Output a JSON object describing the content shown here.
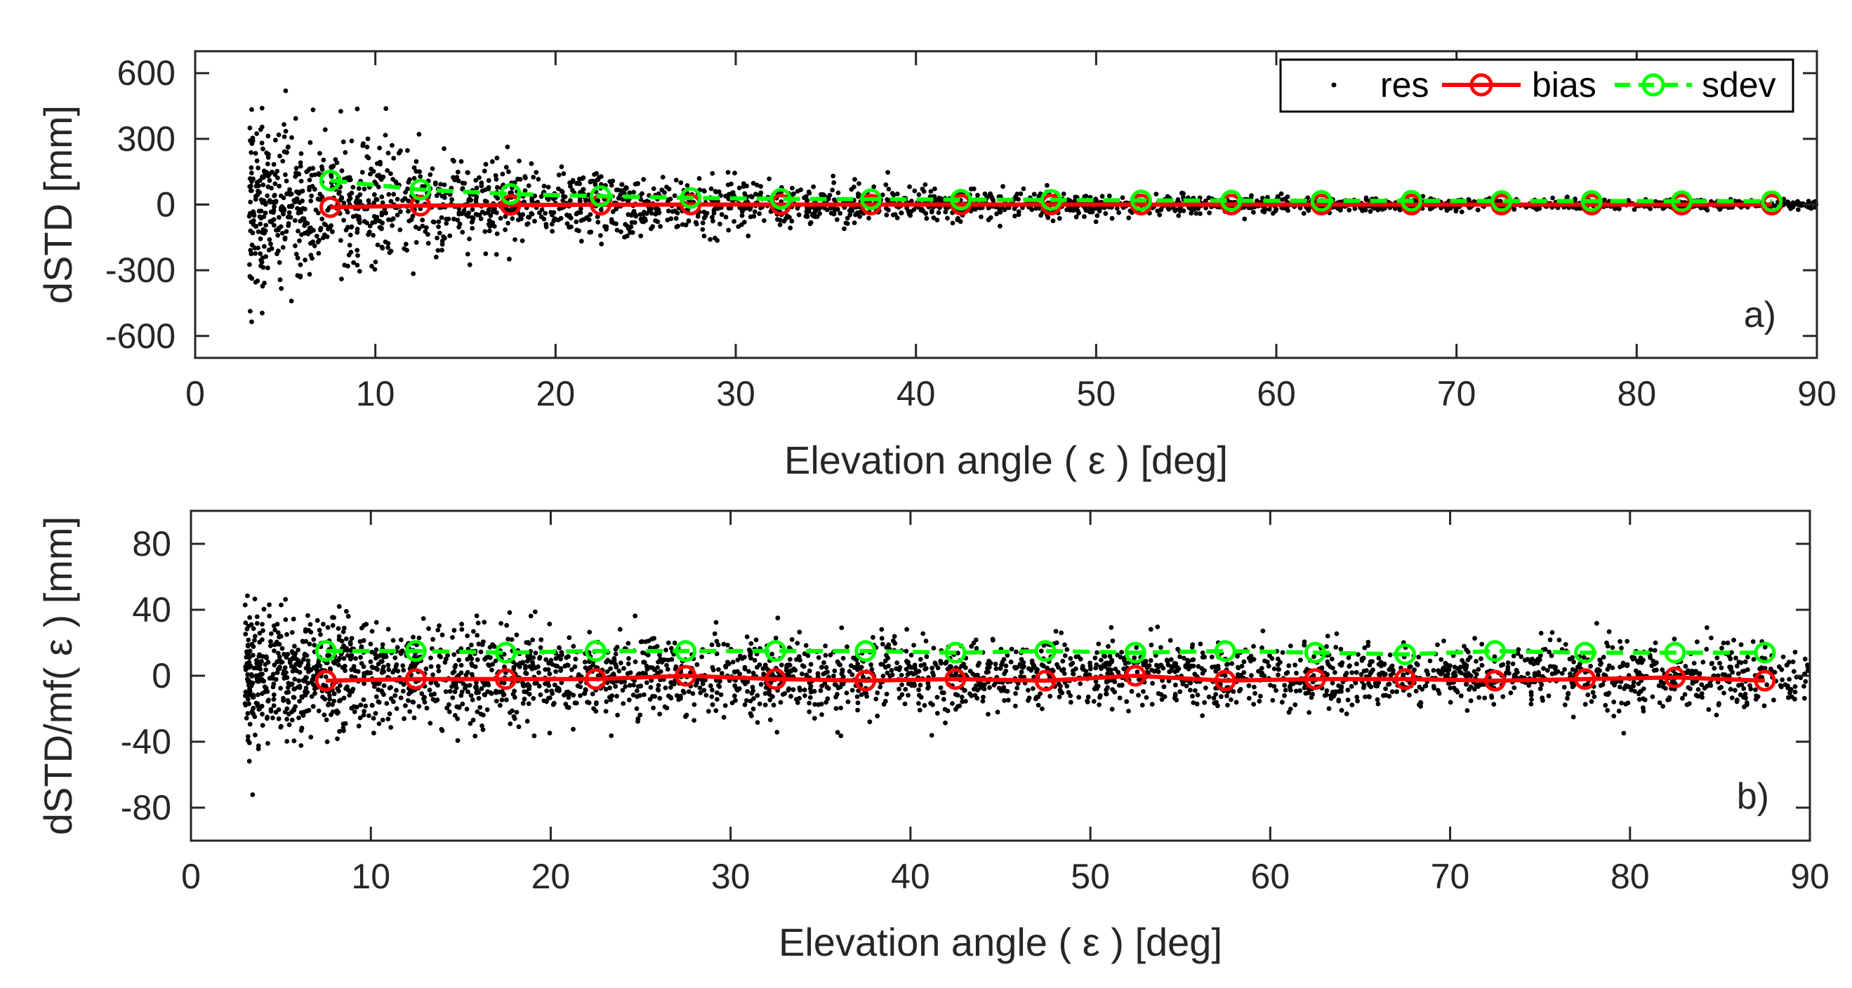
{
  "colors": {
    "res": "#000000",
    "bias": "#ff0000",
    "sdev": "#00ff00",
    "axis": "#262626",
    "background": "#ffffff"
  },
  "legend": {
    "items": [
      {
        "key": "res",
        "label": "res"
      },
      {
        "key": "bias",
        "label": "bias"
      },
      {
        "key": "sdev",
        "label": "sdev"
      }
    ]
  },
  "chart_data": [
    {
      "type": "scatter",
      "panel_tag": "a)",
      "xlabel": "Elevation angle ( ε ) [deg]",
      "ylabel": "dSTD [mm]",
      "xlim": [
        0,
        90
      ],
      "ylim": [
        -700,
        700
      ],
      "xticks": [
        0,
        10,
        20,
        30,
        40,
        50,
        60,
        70,
        80,
        90
      ],
      "xtick_labels": [
        "0",
        "10",
        "20",
        "30",
        "40",
        "50",
        "60",
        "70",
        "80",
        "90"
      ],
      "yticks": [
        600,
        300,
        0,
        -300,
        -600
      ],
      "ytick_labels": [
        "600",
        "300",
        "0",
        "-300",
        "-600"
      ],
      "legend_position": "top-right",
      "residual_cloud": {
        "x_start": 3,
        "x_end": 90,
        "count": 2600,
        "spread_low_elevation": 300,
        "spread_high_elevation": 10,
        "seed": 17
      },
      "series": [
        {
          "name": "bias",
          "style": "solid",
          "marker": "circle",
          "x": [
            7.5,
            12.5,
            17.5,
            22.5,
            27.5,
            32.5,
            37.5,
            42.5,
            47.5,
            52.5,
            57.5,
            62.5,
            67.5,
            72.5,
            77.5,
            82.5,
            87.5
          ],
          "y": [
            -12,
            -5,
            -2,
            -1,
            0,
            0,
            0,
            0,
            0,
            0,
            0,
            0,
            0,
            0,
            0,
            0,
            0
          ]
        },
        {
          "name": "sdev",
          "style": "dashed",
          "marker": "circle",
          "x": [
            7.5,
            12.5,
            17.5,
            22.5,
            27.5,
            32.5,
            37.5,
            42.5,
            47.5,
            52.5,
            57.5,
            62.5,
            67.5,
            72.5,
            77.5,
            82.5,
            87.5
          ],
          "y": [
            110,
            68,
            48,
            38,
            30,
            26,
            24,
            22,
            21,
            19,
            18,
            17,
            17,
            16,
            16,
            15,
            15
          ]
        }
      ]
    },
    {
      "type": "scatter",
      "panel_tag": "b)",
      "xlabel": "Elevation angle ( ε ) [deg]",
      "ylabel": "dSTD/mf( ε ) [mm]",
      "xlim": [
        0,
        90
      ],
      "ylim": [
        -100,
        100
      ],
      "xticks": [
        0,
        10,
        20,
        30,
        40,
        50,
        60,
        70,
        80,
        90
      ],
      "xtick_labels": [
        "0",
        "10",
        "20",
        "30",
        "40",
        "50",
        "60",
        "70",
        "80",
        "90"
      ],
      "yticks": [
        80,
        40,
        0,
        -40,
        -80
      ],
      "ytick_labels": [
        "80",
        "40",
        "0",
        "-40",
        "-80"
      ],
      "residual_cloud": {
        "x_start": 3,
        "x_end": 90,
        "count": 3000,
        "spread_low_elevation": 17,
        "spread_high_elevation": 15,
        "seed": 29
      },
      "series": [
        {
          "name": "bias",
          "style": "solid",
          "marker": "circle",
          "x": [
            7.5,
            12.5,
            17.5,
            22.5,
            27.5,
            32.5,
            37.5,
            42.5,
            47.5,
            52.5,
            57.5,
            62.5,
            67.5,
            72.5,
            77.5,
            82.5,
            87.5
          ],
          "y": [
            -3,
            -2,
            -2,
            -2,
            0,
            -2,
            -3,
            -2,
            -3,
            0,
            -3,
            -2,
            -2,
            -3,
            -2,
            -1,
            -3
          ]
        },
        {
          "name": "sdev",
          "style": "dashed",
          "marker": "circle",
          "x": [
            7.5,
            12.5,
            17.5,
            22.5,
            27.5,
            32.5,
            37.5,
            42.5,
            47.5,
            52.5,
            57.5,
            62.5,
            67.5,
            72.5,
            77.5,
            82.5,
            87.5
          ],
          "y": [
            15,
            15,
            14,
            15,
            15,
            15,
            15,
            14,
            15,
            14,
            15,
            14,
            13,
            15,
            14,
            14,
            14
          ]
        }
      ]
    }
  ]
}
